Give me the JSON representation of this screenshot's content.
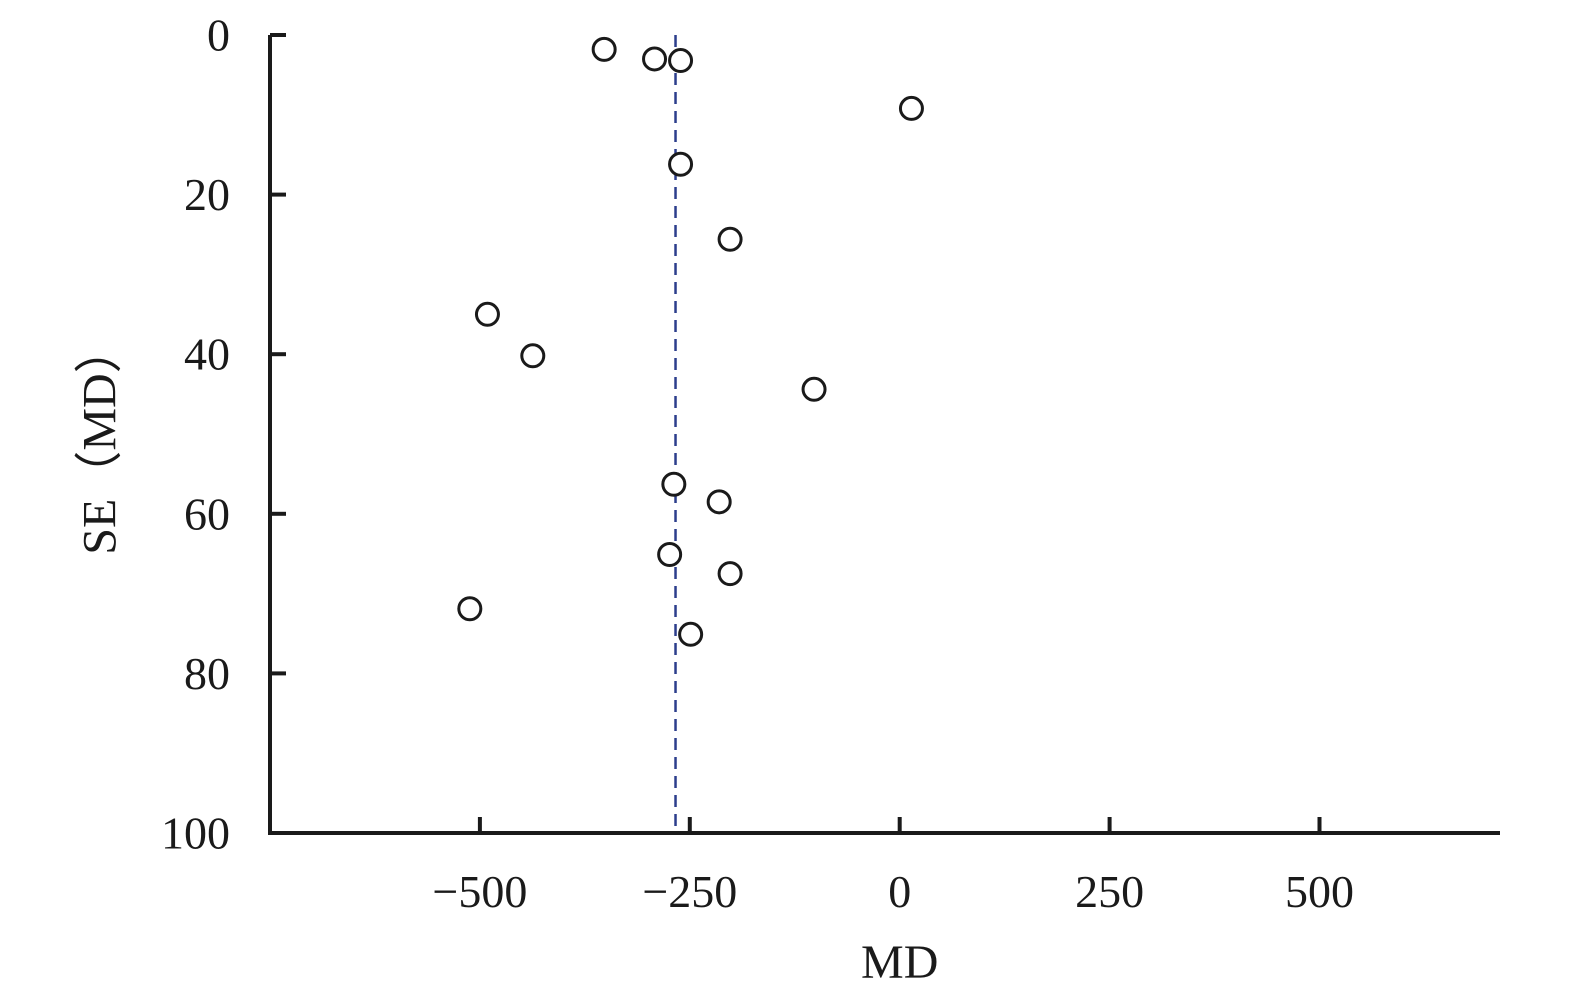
{
  "chart_data": {
    "type": "scatter",
    "title": "",
    "xlabel": "MD",
    "ylabel": "SE（MD）",
    "xlim": [
      -750,
      715
    ],
    "ylim": [
      0,
      100
    ],
    "y_inverted": true,
    "grid": false,
    "legend": "none",
    "x_ticks": [
      {
        "value": -500,
        "label": "−500"
      },
      {
        "value": -250,
        "label": "−250"
      },
      {
        "value": 0,
        "label": "0"
      },
      {
        "value": 250,
        "label": "250"
      },
      {
        "value": 500,
        "label": "500"
      }
    ],
    "y_ticks": [
      {
        "value": 0,
        "label": "0"
      },
      {
        "value": 20,
        "label": "20"
      },
      {
        "value": 40,
        "label": "40"
      },
      {
        "value": 60,
        "label": "60"
      },
      {
        "value": 80,
        "label": "80"
      },
      {
        "value": 100,
        "label": "100"
      }
    ],
    "reference_line": {
      "x": -267,
      "style": "dashed",
      "color": "#2c3e8c"
    },
    "points": [
      {
        "x": -352,
        "y": 1.8
      },
      {
        "x": -292,
        "y": 3.0
      },
      {
        "x": -261,
        "y": 3.2
      },
      {
        "x": 14,
        "y": 9.2
      },
      {
        "x": -261,
        "y": 16.2
      },
      {
        "x": -202,
        "y": 25.6
      },
      {
        "x": -491,
        "y": 35.0
      },
      {
        "x": -437,
        "y": 40.2
      },
      {
        "x": -102,
        "y": 44.4
      },
      {
        "x": -269,
        "y": 56.3
      },
      {
        "x": -215,
        "y": 58.5
      },
      {
        "x": -274,
        "y": 65.1
      },
      {
        "x": -202,
        "y": 67.5
      },
      {
        "x": -512,
        "y": 71.9
      },
      {
        "x": -249,
        "y": 75.1
      }
    ],
    "colors": {
      "axis": "#1a1a1a",
      "marker_stroke": "#1a1a1a",
      "marker_fill": "#ffffff",
      "reference_line": "#2c3e8c"
    }
  }
}
